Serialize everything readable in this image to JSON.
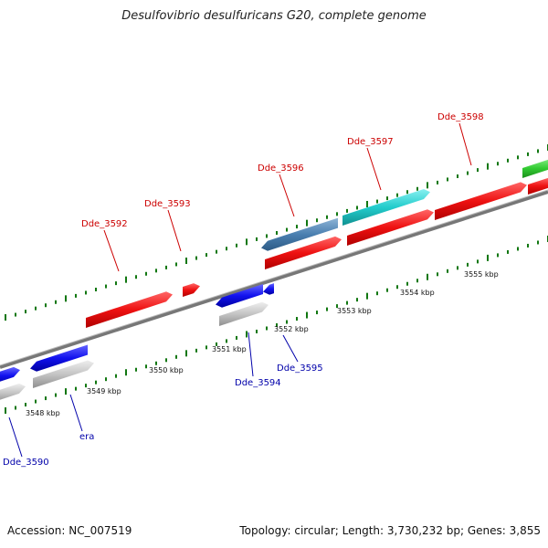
{
  "title": "Desulfovibrio desulfuricans G20, complete genome",
  "footer": {
    "accession": "Accession: NC_007519",
    "summary": "Topology: circular; Length: 3,730,232 bp; Genes: 3,855"
  },
  "colors": {
    "forward_gene": "#ee1111",
    "reverse_gene": "#1111ee",
    "gene_grey": "#bdbdbd",
    "gene_steel": "#4a7fb0",
    "gene_cyan": "#22cccc",
    "gene_green": "#33cc33",
    "backbone": "#888888",
    "tick": "#117711",
    "forward_label": "#cc0000",
    "reverse_label": "#0000aa"
  },
  "scale_labels": [
    "3548 kbp",
    "3549 kbp",
    "3550 kbp",
    "3551 kbp",
    "3552 kbp",
    "3553 kbp",
    "3554 kbp",
    "3555 kbp"
  ],
  "forward_genes": [
    "Dde_3592",
    "Dde_3593",
    "Dde_3596",
    "Dde_3597",
    "Dde_3598"
  ],
  "reverse_genes": [
    "Dde_3590",
    "era",
    "Dde_3594",
    "Dde_3595"
  ]
}
